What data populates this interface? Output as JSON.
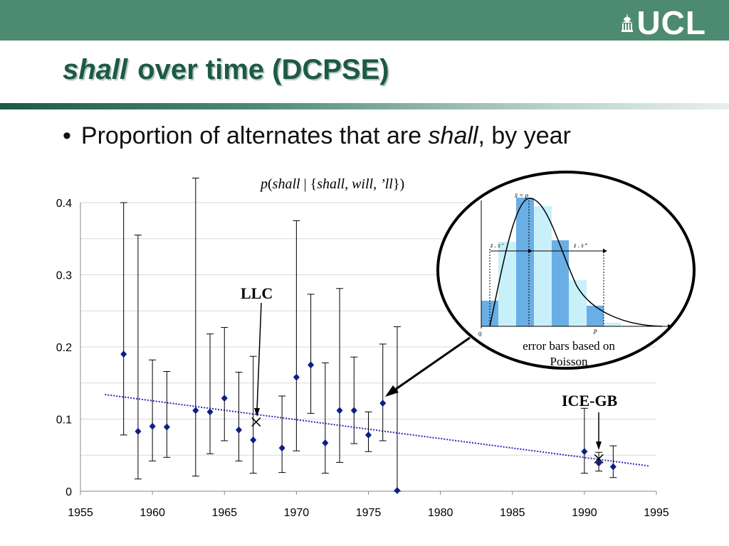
{
  "header": {
    "logo_text": "UCL",
    "title_em": "shall",
    "title_rest": "over time (DCPSE)"
  },
  "bullet": {
    "text_before": "Proportion of alternates that are ",
    "text_em": "shall",
    "text_after": ", by year"
  },
  "chart_data": {
    "type": "scatter",
    "formula": {
      "p": "p",
      "open": "(",
      "shall": "shall",
      "bar": " | {",
      "set": "shall, will, ’ll",
      "close": "})"
    },
    "xlim": [
      1955,
      1995
    ],
    "ylim": [
      0,
      0.4
    ],
    "x_ticks": [
      "1955",
      "1960",
      "1965",
      "1970",
      "1975",
      "1980",
      "1985",
      "1990",
      "1995"
    ],
    "y_ticks": [
      "0",
      "0.1",
      "0.2",
      "0.3",
      "0.4"
    ],
    "grid": true,
    "points": [
      {
        "x": 1958,
        "y": 0.19,
        "lo": 0.078,
        "hi": 0.4
      },
      {
        "x": 1959,
        "y": 0.083,
        "lo": 0.017,
        "hi": 0.355
      },
      {
        "x": 1960,
        "y": 0.09,
        "lo": 0.042,
        "hi": 0.182
      },
      {
        "x": 1961,
        "y": 0.089,
        "lo": 0.047,
        "hi": 0.166
      },
      {
        "x": 1963,
        "y": 0.112,
        "lo": 0.021,
        "hi": 0.434
      },
      {
        "x": 1964,
        "y": 0.11,
        "lo": 0.052,
        "hi": 0.218
      },
      {
        "x": 1965,
        "y": 0.129,
        "lo": 0.07,
        "hi": 0.227
      },
      {
        "x": 1966,
        "y": 0.085,
        "lo": 0.042,
        "hi": 0.165
      },
      {
        "x": 1967,
        "y": 0.071,
        "lo": 0.025,
        "hi": 0.187
      },
      {
        "x": 1969,
        "y": 0.06,
        "lo": 0.026,
        "hi": 0.132
      },
      {
        "x": 1970,
        "y": 0.158,
        "lo": 0.056,
        "hi": 0.375
      },
      {
        "x": 1971,
        "y": 0.175,
        "lo": 0.108,
        "hi": 0.273
      },
      {
        "x": 1972,
        "y": 0.067,
        "lo": 0.025,
        "hi": 0.178
      },
      {
        "x": 1973,
        "y": 0.112,
        "lo": 0.04,
        "hi": 0.281
      },
      {
        "x": 1974,
        "y": 0.112,
        "lo": 0.066,
        "hi": 0.186
      },
      {
        "x": 1975,
        "y": 0.078,
        "lo": 0.055,
        "hi": 0.11
      },
      {
        "x": 1976,
        "y": 0.122,
        "lo": 0.07,
        "hi": 0.204
      },
      {
        "x": 1977,
        "y": 0.001,
        "lo": 0.0,
        "hi": 0.228
      },
      {
        "x": 1990,
        "y": 0.055,
        "lo": 0.025,
        "hi": 0.115
      },
      {
        "x": 1991,
        "y": 0.039,
        "lo": 0.028,
        "hi": 0.054
      },
      {
        "x": 1992,
        "y": 0.034,
        "lo": 0.019,
        "hi": 0.063
      }
    ],
    "markers": [
      {
        "label": "LLC",
        "x": 1967.2,
        "y": 0.096
      },
      {
        "label": "ICE-GB",
        "x": 1991.0,
        "y": 0.045
      }
    ],
    "trendline": {
      "x": [
        1956.7,
        1994.5
      ],
      "y": [
        0.134,
        0.035
      ]
    },
    "inset": {
      "caption_line1": "error bars based on",
      "caption_line2": "Poisson",
      "label_mean": "x̄ = p",
      "label_left": "z . s⁻",
      "label_right": "z . s⁺",
      "label_zero": "0",
      "label_p": "p"
    }
  }
}
